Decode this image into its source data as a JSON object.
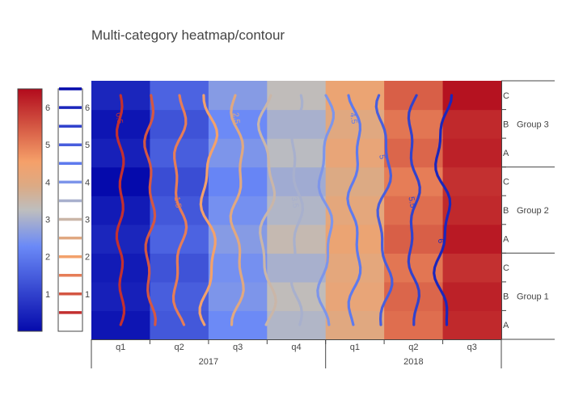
{
  "chart_data": {
    "type": "heatmap",
    "title": "Multi-category heatmap/contour",
    "x_categories": [
      {
        "year": "2017",
        "quarters": [
          "q1",
          "q2",
          "q3",
          "q4"
        ]
      },
      {
        "year": "2018",
        "quarters": [
          "q1",
          "q2",
          "q3"
        ]
      }
    ],
    "y_categories": [
      {
        "group": "Group 1",
        "rows": [
          "A",
          "B",
          "C"
        ]
      },
      {
        "group": "Group 2",
        "rows": [
          "A",
          "B",
          "C"
        ]
      },
      {
        "group": "Group 3",
        "rows": [
          "A",
          "B",
          "C"
        ]
      }
    ],
    "z": [
      [
        0.2,
        1.4,
        2.3,
        3.1,
        4.0,
        5.2,
        6.1
      ],
      [
        0.4,
        1.5,
        2.5,
        3.3,
        4.2,
        5.3,
        6.2
      ],
      [
        0.3,
        1.3,
        2.4,
        3.0,
        4.1,
        5.1,
        6.0
      ],
      [
        0.5,
        1.6,
        2.6,
        3.4,
        4.3,
        5.4,
        6.3
      ],
      [
        0.3,
        1.4,
        2.4,
        3.1,
        4.1,
        5.2,
        6.1
      ],
      [
        0.0,
        1.2,
        2.2,
        2.9,
        3.9,
        5.0,
        6.0
      ],
      [
        0.4,
        1.5,
        2.5,
        3.2,
        4.2,
        5.3,
        6.2
      ],
      [
        0.2,
        1.3,
        2.3,
        3.0,
        4.0,
        5.1,
        6.1
      ],
      [
        0.5,
        1.6,
        2.6,
        3.3,
        4.3,
        5.4,
        6.4
      ]
    ],
    "contours": [
      {
        "value": 0.5,
        "label": "0.5",
        "x_center": 0.5
      },
      {
        "value": 1.0,
        "x_center": 1.0
      },
      {
        "value": 1.5,
        "label": "1.5",
        "x_center": 1.5
      },
      {
        "value": 2.0,
        "x_center": 2.0
      },
      {
        "value": 2.5,
        "label": "2.5",
        "x_center": 2.5
      },
      {
        "value": 3.0,
        "x_center": 3.0
      },
      {
        "value": 3.5,
        "label": "3.5",
        "x_center": 3.5
      },
      {
        "value": 4.0,
        "x_center": 4.0
      },
      {
        "value": 4.5,
        "label": "4.5",
        "x_center": 4.5
      },
      {
        "value": 5.0,
        "label": "5",
        "x_center": 5.0
      },
      {
        "value": 5.5,
        "label": "5.5",
        "x_center": 5.5
      },
      {
        "value": 6.0,
        "label": "6",
        "x_center": 6.0
      }
    ],
    "zrange": [
      0,
      6.5
    ],
    "colorscale": "RdBu (reversed)",
    "heatmap_colorbar": {
      "ticks": [
        "1",
        "2",
        "3",
        "4",
        "5",
        "6"
      ],
      "tickvals": [
        1,
        2,
        3,
        4,
        5,
        6
      ],
      "range": [
        0,
        6.5
      ]
    },
    "contour_colorbar": {
      "ticks": [
        "1",
        "2",
        "3",
        "4",
        "5",
        "6"
      ],
      "tickvals": [
        1,
        2,
        3,
        4,
        5,
        6
      ],
      "range": [
        0,
        6.5
      ],
      "levels": [
        0.5,
        1.0,
        1.5,
        2.0,
        2.5,
        3.0,
        3.5,
        4.0,
        4.5,
        5.0,
        5.5,
        6.0,
        6.5
      ]
    },
    "legend": "none",
    "grid": false
  }
}
